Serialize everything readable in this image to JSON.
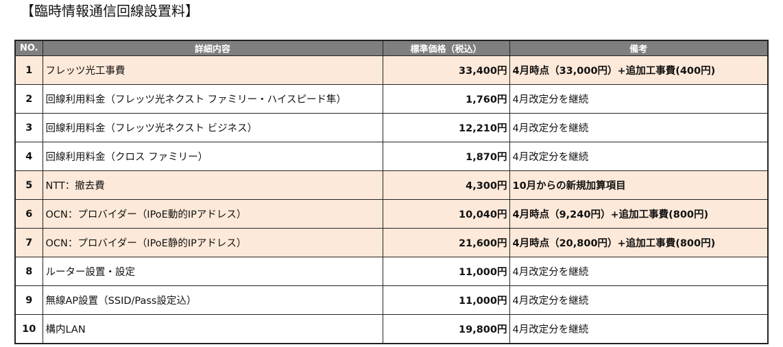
{
  "title": "【臨時情報通信回線設置料】",
  "colors": {
    "header_bg": "#7f7f7f",
    "highlight_bg": "#fde9d9"
  },
  "table": {
    "headers": [
      "NO.",
      "詳細内容",
      "標準価格（税込）",
      "備考"
    ],
    "rows": [
      {
        "no": "1",
        "detail": "フレッツ光工事費",
        "price": "33,400円",
        "note": "4月時点（33,000円）+追加工事費(400円)",
        "highlight": true
      },
      {
        "no": "2",
        "detail": "回線利用料金（フレッツ光ネクスト ファミリー・ハイスピード隼）",
        "price": "1,760円",
        "note": "4月改定分を継続",
        "highlight": false
      },
      {
        "no": "3",
        "detail": "回線利用料金（フレッツ光ネクスト ビジネス）",
        "price": "12,210円",
        "note": "4月改定分を継続",
        "highlight": false
      },
      {
        "no": "4",
        "detail": "回線利用料金（クロス ファミリー）",
        "price": "1,870円",
        "note": "4月改定分を継続",
        "highlight": false
      },
      {
        "no": "5",
        "detail": "NTT：撤去費",
        "price": "4,300円",
        "note": "10月からの新規加算項目",
        "highlight": true
      },
      {
        "no": "6",
        "detail": "OCN：プロバイダー（IPoE動的IPアドレス）",
        "price": "10,040円",
        "note": "4月時点（9,240円）+追加工事費(800円)",
        "highlight": true
      },
      {
        "no": "7",
        "detail": "OCN：プロバイダー（IPoE静的IPアドレス）",
        "price": "21,600円",
        "note": "4月時点（20,800円）+追加工事費(800円)",
        "highlight": true
      },
      {
        "no": "8",
        "detail": "ルーター設置・設定",
        "price": "11,000円",
        "note": "4月改定分を継続",
        "highlight": false
      },
      {
        "no": "9",
        "detail": "無線AP設置（SSID/Pass設定込）",
        "price": "11,000円",
        "note": "4月改定分を継続",
        "highlight": false
      },
      {
        "no": "10",
        "detail": "構内LAN",
        "price": "19,800円",
        "note": "4月改定分を継続",
        "highlight": false
      }
    ]
  }
}
